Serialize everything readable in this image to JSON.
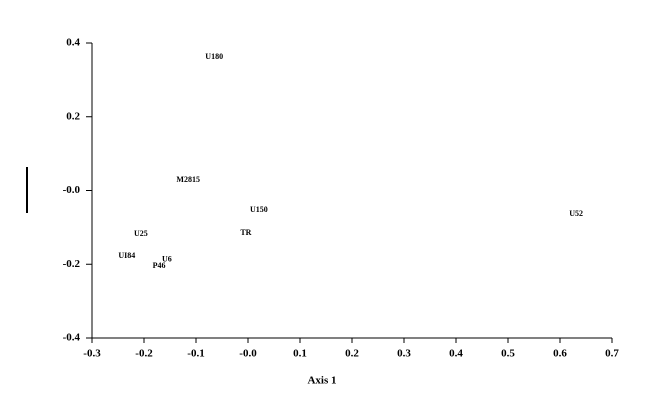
{
  "chart_data": {
    "type": "scatter",
    "x_label": "Axis 1",
    "x": [
      -0.065,
      -0.115,
      0.021,
      -0.206,
      -0.004,
      -0.233,
      -0.156,
      -0.171,
      0.631
    ],
    "values": [
      0.362,
      0.028,
      -0.053,
      -0.118,
      -0.116,
      -0.178,
      -0.188,
      -0.205,
      -0.064
    ],
    "labels": [
      "U180",
      "M2815",
      "U150",
      "U25",
      "TR",
      "UI84",
      "U6",
      "P46",
      "U52"
    ],
    "xlim": [
      -0.3,
      0.7
    ],
    "ylim": [
      -0.4,
      0.4
    ],
    "xticks": [
      -0.3,
      -0.2,
      -0.1,
      {
        "value": 0,
        "label": "-0.0"
      },
      0.1,
      0.2,
      0.3,
      0.4,
      0.5,
      0.6,
      0.7
    ],
    "yticks": [
      -0.4,
      -0.2,
      {
        "value": 0,
        "label": "-0.0"
      },
      0.2,
      0.4
    ]
  }
}
